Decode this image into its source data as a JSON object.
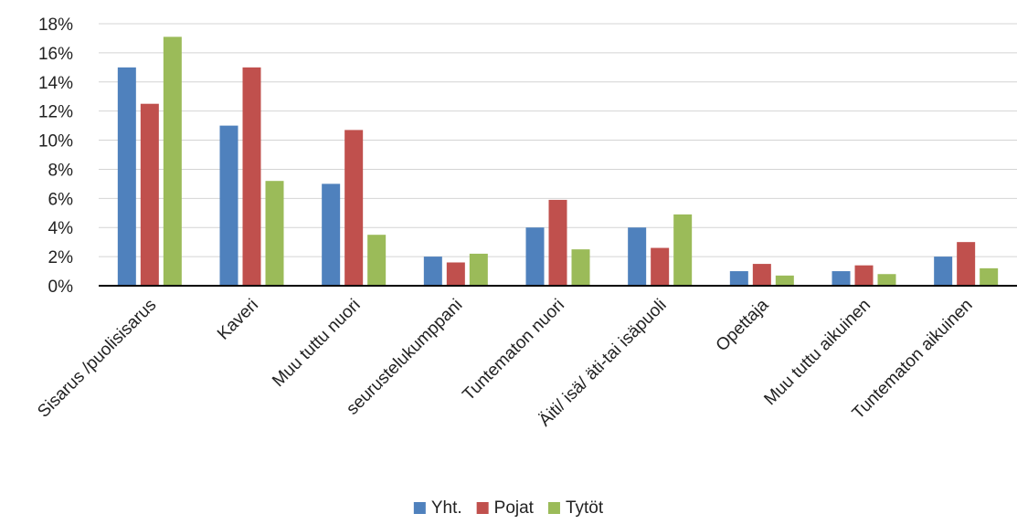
{
  "chart_data": {
    "type": "bar",
    "title": "",
    "xlabel": "",
    "ylabel": "",
    "ylim": [
      0,
      18
    ],
    "y_tick_step": 2,
    "y_tick_format": "percent",
    "grid": true,
    "legend_position": "bottom",
    "categories": [
      "Sisarus /puolisisarus",
      "Kaveri",
      "Muu tuttu nuori",
      "seurustelukumppani",
      "Tuntematon nuori",
      "Äiti/ isä/ äti-tai isäpuoli",
      "Opettaja",
      "Muu tuttu aikuinen",
      "Tuntematon aikuinen"
    ],
    "series": [
      {
        "name": "Yht.",
        "color": "#4f81bd",
        "values": [
          15.0,
          11.0,
          7.0,
          2.0,
          4.0,
          4.0,
          1.0,
          1.0,
          2.0
        ]
      },
      {
        "name": "Pojat",
        "color": "#c0504d",
        "values": [
          12.5,
          15.0,
          10.7,
          1.6,
          5.9,
          2.6,
          1.5,
          1.4,
          3.0
        ]
      },
      {
        "name": "Tytöt",
        "color": "#9bbb59",
        "values": [
          17.1,
          7.2,
          3.5,
          2.2,
          2.5,
          4.9,
          0.7,
          0.8,
          1.2
        ]
      }
    ]
  }
}
